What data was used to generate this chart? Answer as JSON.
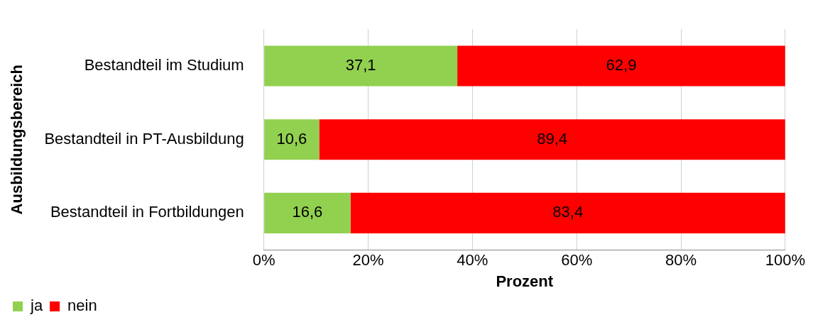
{
  "chart_data": {
    "type": "bar",
    "orientation": "horizontal",
    "stacked": true,
    "ylabel": "Ausbildungsbereich",
    "xlabel": "Prozent",
    "categories": [
      "Bestandteil im Studium",
      "Bestandteil in PT-Ausbildung",
      "Bestandteil in Fortbildungen"
    ],
    "series": [
      {
        "name": "ja",
        "color": "#92d050",
        "values": [
          37.1,
          10.6,
          16.6
        ],
        "value_labels": [
          "37,1",
          "10,6",
          "16,6"
        ]
      },
      {
        "name": "nein",
        "color": "#ff0000",
        "values": [
          62.9,
          89.4,
          83.4
        ],
        "value_labels": [
          "62,9",
          "89,4",
          "83,4"
        ]
      }
    ],
    "xlim": [
      0,
      100
    ],
    "xticks": [
      {
        "value": 0,
        "label": "0%"
      },
      {
        "value": 20,
        "label": "20%"
      },
      {
        "value": 40,
        "label": "40%"
      },
      {
        "value": 60,
        "label": "60%"
      },
      {
        "value": 80,
        "label": "80%"
      },
      {
        "value": 100,
        "label": "100%"
      }
    ],
    "grid": "x",
    "legend": "bottom left"
  }
}
